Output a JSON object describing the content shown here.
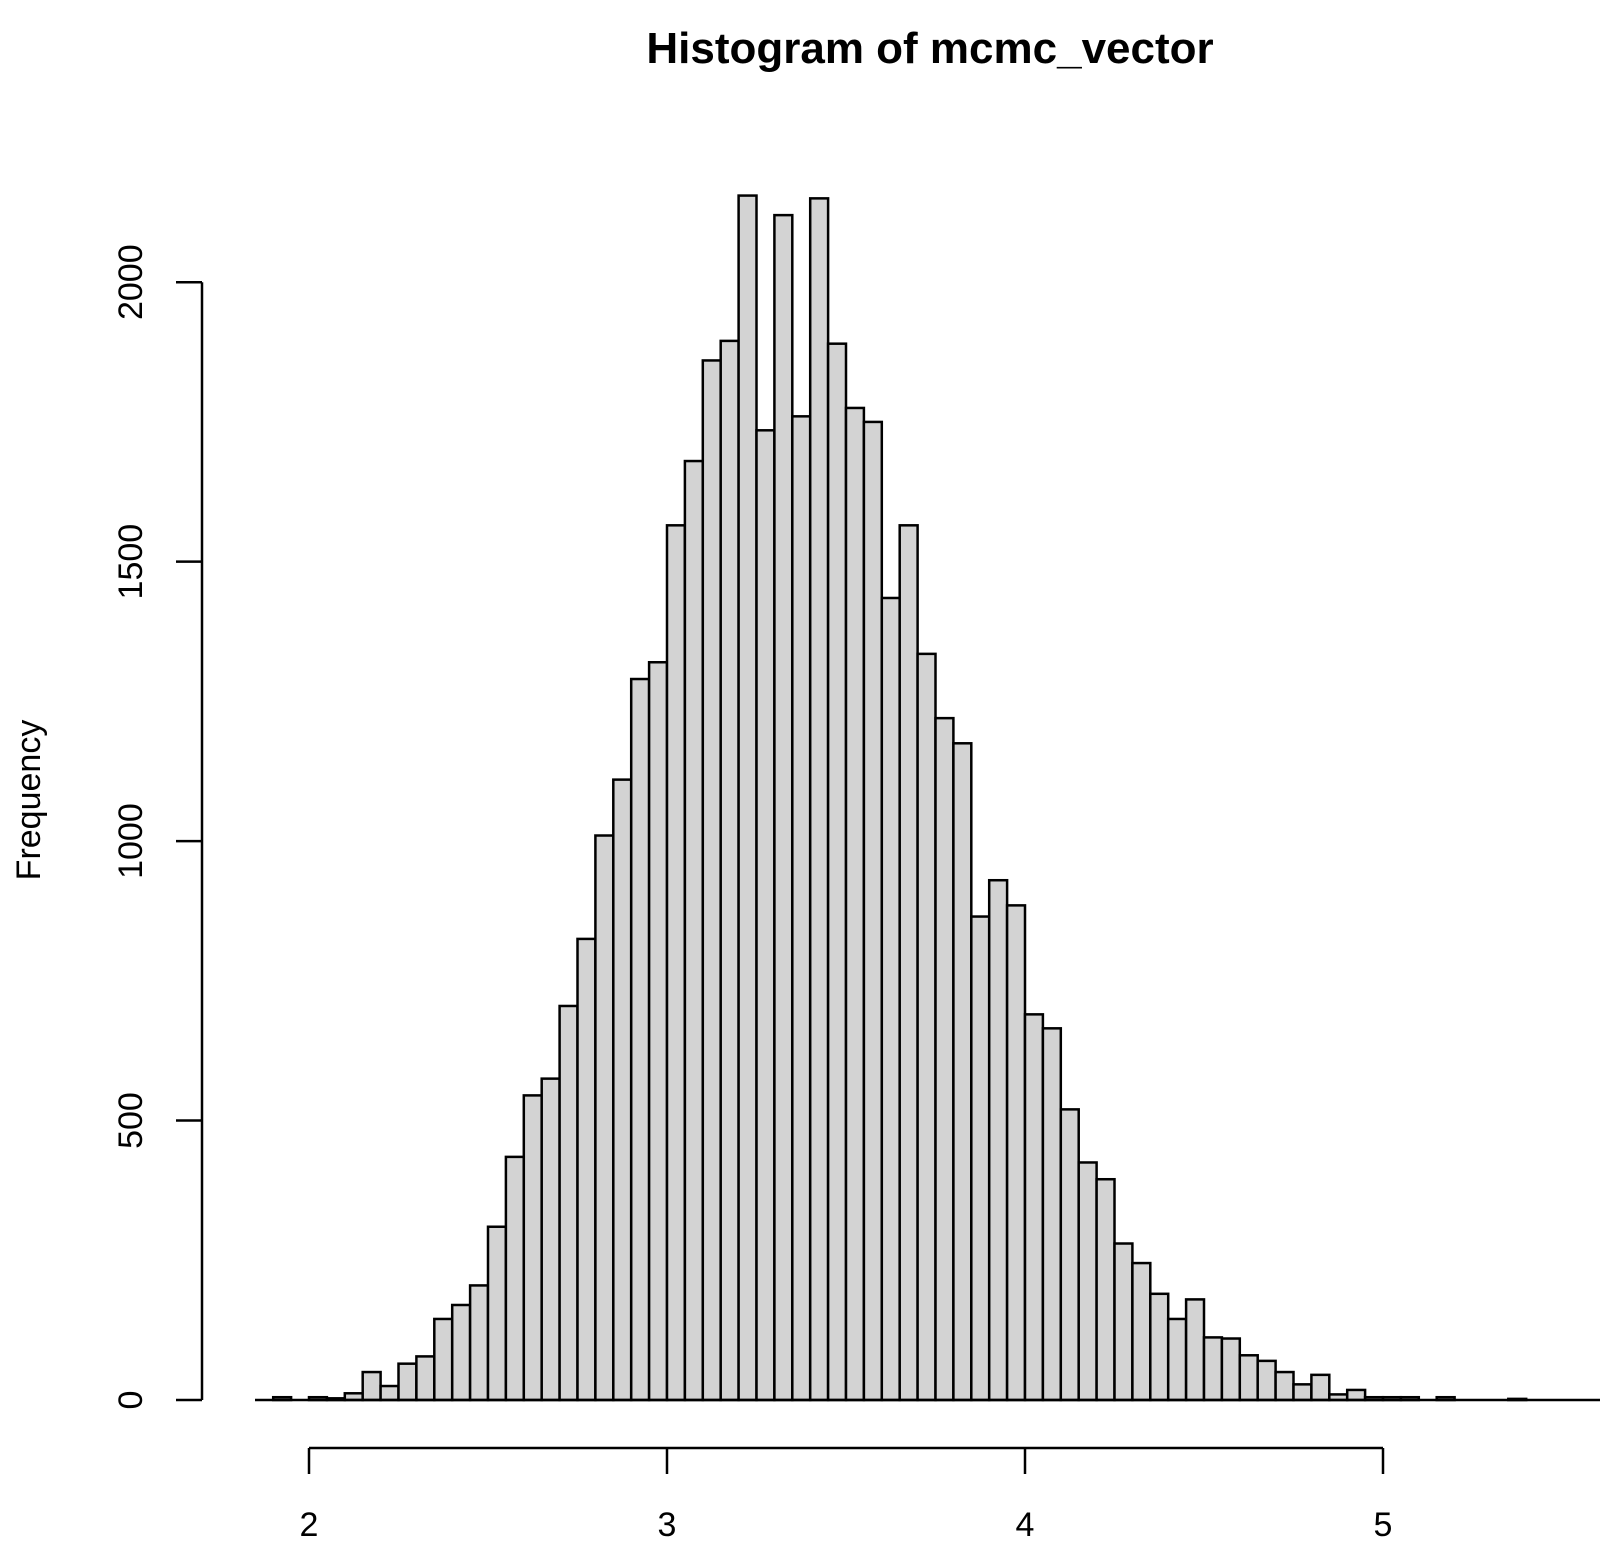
{
  "chart_data": {
    "type": "bar",
    "title": "Histogram of mcmc_vector",
    "xlabel": "",
    "ylabel": "Frequency",
    "bin_width": 0.05,
    "bin_start": 1.85,
    "xlim": [
      1.85,
      5.6
    ],
    "ylim": [
      0,
      2200
    ],
    "x_ticks": [
      2,
      3,
      4,
      5
    ],
    "x_tick_labels": [
      "2",
      "3",
      "4",
      "5"
    ],
    "y_ticks": [
      0,
      500,
      1000,
      1500,
      2000
    ],
    "y_tick_labels": [
      "0",
      "500",
      "1000",
      "1500",
      "2000"
    ],
    "bar_fill": "#d3d3d3",
    "bar_stroke": "#000000",
    "values": [
      0,
      5,
      0,
      5,
      3,
      12,
      50,
      25,
      65,
      78,
      145,
      170,
      205,
      310,
      435,
      545,
      575,
      705,
      825,
      1010,
      1110,
      1290,
      1320,
      1565,
      1680,
      1860,
      1895,
      2155,
      1735,
      2120,
      1760,
      2150,
      1890,
      1775,
      1750,
      1435,
      1565,
      1335,
      1220,
      1175,
      865,
      930,
      885,
      690,
      665,
      520,
      425,
      395,
      280,
      245,
      190,
      145,
      180,
      112,
      110,
      80,
      70,
      50,
      28,
      45,
      10,
      18,
      5,
      5,
      5,
      0,
      5,
      0,
      0,
      0,
      2,
      0,
      0,
      0,
      0
    ]
  }
}
